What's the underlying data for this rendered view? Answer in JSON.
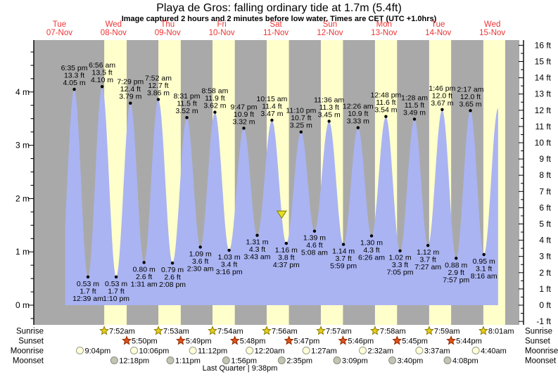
{
  "header": {
    "title": "Playa de Gros: falling  ordinary tide at 1.7m (5.4ft)",
    "subtitle": "Image captured 2 hours and 2 minutes before low water. Times are CET (UTC +1.0hrs)"
  },
  "colors": {
    "background_night": "#a9a9a9",
    "background_day": "#ffffcc",
    "tide_fill": "#aab4f2",
    "day_label": "#ee3333",
    "axis_text": "#000000",
    "sunrise_star_fill": "#e8cc1a",
    "sunrise_star_border": "#8a7d00",
    "sunset_star_fill": "#e0521a",
    "sunset_star_border": "#8c2a00",
    "moonrise_fill": "#ffffd8",
    "moonrise_border": "#9a9a8a",
    "moonset_fill": "#c4c4b4",
    "moonset_border": "#8a8a7e",
    "now_marker_fill": "#e3df25",
    "now_marker_border": "#8a8a10"
  },
  "chart_data": {
    "type": "area",
    "title": "Playa de Gros: falling  ordinary tide at 1.7m (5.4ft)",
    "x_axis_days": [
      {
        "weekday": "Tue",
        "date": "07-Nov"
      },
      {
        "weekday": "Wed",
        "date": "08-Nov"
      },
      {
        "weekday": "Thu",
        "date": "09-Nov"
      },
      {
        "weekday": "Fri",
        "date": "10-Nov"
      },
      {
        "weekday": "Sat",
        "date": "11-Nov"
      },
      {
        "weekday": "Sun",
        "date": "12-Nov"
      },
      {
        "weekday": "Mon",
        "date": "13-Nov"
      },
      {
        "weekday": "Tue",
        "date": "14-Nov"
      },
      {
        "weekday": "Wed",
        "date": "15-Nov"
      }
    ],
    "y_axis_left": {
      "unit": "m",
      "tick_labels": [
        "4 m",
        "3 m",
        "2 m",
        "1 m",
        "0 m"
      ],
      "major_ticks": [
        4,
        3,
        2,
        1,
        0
      ],
      "minor_step": 0.25
    },
    "y_axis_right": {
      "unit": "ft",
      "major_ticks": [
        16,
        15,
        14,
        13,
        12,
        11,
        10,
        9,
        8,
        7,
        6,
        5,
        4,
        3,
        2,
        1,
        0,
        -1
      ],
      "minor_step": 0.5,
      "label_suffix": " ft"
    },
    "daylight_bands_days": [
      [
        1.3278,
        1.7431
      ],
      [
        2.3285,
        2.7424
      ],
      [
        3.3292,
        3.7417
      ],
      [
        4.3306,
        4.741
      ],
      [
        5.3313,
        5.7403
      ],
      [
        6.3319,
        6.7396
      ],
      [
        7.3326,
        7.7389
      ],
      [
        8.334,
        8.738
      ]
    ],
    "curve": {
      "start_day": 0.6076,
      "end_day": 8.6076,
      "fill_to_m": 0,
      "pre_start_low": {
        "d": 0.5104,
        "m": 0.45
      }
    },
    "now_marker": {
      "day": 4.6076,
      "level_m": 1.7
    },
    "extremes": [
      {
        "type": "high",
        "d": 0.7743,
        "m": 4.05,
        "lines": [
          "6:35 pm",
          "13.3 ft",
          "4.05 m"
        ]
      },
      {
        "type": "low",
        "d": 1.0271,
        "m": 0.53,
        "lines": [
          "0.53 m",
          "1.7 ft",
          "12:39 am"
        ]
      },
      {
        "type": "high",
        "d": 1.2889,
        "m": 4.1,
        "lines": [
          "6:56 am",
          "13.5 ft",
          "4.10 m"
        ]
      },
      {
        "type": "low",
        "d": 1.5486,
        "m": 0.53,
        "lines": [
          "0.53 m",
          "1.7 ft",
          "1:10 pm"
        ]
      },
      {
        "type": "high",
        "d": 1.8118,
        "m": 3.79,
        "lines": [
          "7:29 pm",
          "12.4 ft",
          "3.79 m"
        ]
      },
      {
        "type": "low",
        "d": 2.0632,
        "m": 0.8,
        "lines": [
          "0.80 m",
          "2.6 ft",
          "1:31 am"
        ]
      },
      {
        "type": "high",
        "d": 2.3278,
        "m": 3.86,
        "lines": [
          "7:52 am",
          "12.7 ft",
          "3.86 m"
        ]
      },
      {
        "type": "low",
        "d": 2.5889,
        "m": 0.79,
        "lines": [
          "0.79 m",
          "2.6 ft",
          "2:08 pm"
        ]
      },
      {
        "type": "high",
        "d": 2.8549,
        "m": 3.52,
        "lines": [
          "8:31 pm",
          "11.5 ft",
          "3.52 m"
        ]
      },
      {
        "type": "low",
        "d": 3.1042,
        "m": 1.09,
        "lines": [
          "1.09 m",
          "3.6 ft",
          "2:30 am"
        ]
      },
      {
        "type": "high",
        "d": 3.3736,
        "m": 3.62,
        "lines": [
          "8:58 am",
          "11.9 ft",
          "3.62 m"
        ]
      },
      {
        "type": "low",
        "d": 3.6361,
        "m": 1.03,
        "lines": [
          "1.03 m",
          "3.4 ft",
          "3:16 pm"
        ]
      },
      {
        "type": "high",
        "d": 3.9076,
        "m": 3.32,
        "lines": [
          "9:47 pm",
          "10.9 ft",
          "3.32 m"
        ]
      },
      {
        "type": "low",
        "d": 4.1549,
        "m": 1.31,
        "lines": [
          "1.31 m",
          "4.3 ft",
          "3:43 am"
        ]
      },
      {
        "type": "high",
        "d": 4.4271,
        "m": 3.47,
        "lines": [
          "10:15 am",
          "11.4 ft",
          "3.47 m"
        ]
      },
      {
        "type": "low",
        "d": 4.6924,
        "m": 1.16,
        "lines": [
          "1.16 m",
          "3.8 ft",
          "4:37 pm"
        ]
      },
      {
        "type": "high",
        "d": 4.9653,
        "m": 3.25,
        "lines": [
          "11:10 pm",
          "10.7 ft",
          "3.25 m"
        ]
      },
      {
        "type": "low",
        "d": 5.2139,
        "m": 1.39,
        "lines": [
          "1.39 m",
          "4.6 ft",
          "5:08 am"
        ]
      },
      {
        "type": "high",
        "d": 5.4833,
        "m": 3.45,
        "lines": [
          "11:36 am",
          "11.3 ft",
          "3.45 m"
        ]
      },
      {
        "type": "low",
        "d": 5.7493,
        "m": 1.14,
        "lines": [
          "1.14 m",
          "3.7 ft",
          "5:59 pm"
        ]
      },
      {
        "type": "high",
        "d": 6.0181,
        "m": 3.33,
        "lines": [
          "12:26 am",
          "10.9 ft",
          "3.33 m"
        ]
      },
      {
        "type": "low",
        "d": 6.2681,
        "m": 1.3,
        "lines": [
          "1.30 m",
          "4.3 ft",
          "6:26 am"
        ]
      },
      {
        "type": "high",
        "d": 6.5333,
        "m": 3.54,
        "lines": [
          "12:48 pm",
          "11.6 ft",
          "3.54 m"
        ]
      },
      {
        "type": "low",
        "d": 6.7951,
        "m": 1.02,
        "lines": [
          "1.02 m",
          "3.3 ft",
          "7:05 pm"
        ]
      },
      {
        "type": "high",
        "d": 7.0611,
        "m": 3.49,
        "lines": [
          "1:28 am",
          "11.5 ft",
          "3.49 m"
        ]
      },
      {
        "type": "low",
        "d": 7.3104,
        "m": 1.12,
        "lines": [
          "1.12 m",
          "3.7 ft",
          "7:27 am"
        ]
      },
      {
        "type": "high",
        "d": 7.5736,
        "m": 3.67,
        "lines": [
          "1:46 pm",
          "12.0 ft",
          "3.67 m"
        ]
      },
      {
        "type": "low",
        "d": 7.8313,
        "m": 0.88,
        "lines": [
          "0.88 m",
          "2.9 ft",
          "7:57 pm"
        ]
      },
      {
        "type": "high",
        "d": 8.0951,
        "m": 3.65,
        "lines": [
          "2:17 am",
          "12.0 ft",
          "3.65 m"
        ]
      },
      {
        "type": "low",
        "d": 8.3444,
        "m": 0.95,
        "lines": [
          "0.95 m",
          "3.1 ft",
          "8:16 am"
        ]
      },
      {
        "type": "high",
        "d": 8.6076,
        "m": 3.7,
        "lines": []
      }
    ]
  },
  "astro": {
    "rows": [
      {
        "label": "Sunrise",
        "icon": "sun-star",
        "events": [
          {
            "d": 1.3278,
            "t": "7:52am"
          },
          {
            "d": 2.3285,
            "t": "7:53am"
          },
          {
            "d": 3.3292,
            "t": "7:54am"
          },
          {
            "d": 4.3306,
            "t": "7:56am"
          },
          {
            "d": 5.3313,
            "t": "7:57am"
          },
          {
            "d": 6.3319,
            "t": "7:58am"
          },
          {
            "d": 7.3326,
            "t": "7:59am"
          },
          {
            "d": 8.334,
            "t": "8:01am"
          }
        ]
      },
      {
        "label": "Sunset",
        "icon": "sunset-star",
        "events": [
          {
            "d": 1.7431,
            "t": "5:50pm"
          },
          {
            "d": 2.7424,
            "t": "5:49pm"
          },
          {
            "d": 3.7417,
            "t": "5:48pm"
          },
          {
            "d": 4.741,
            "t": "5:47pm"
          },
          {
            "d": 5.7403,
            "t": "5:46pm"
          },
          {
            "d": 6.7396,
            "t": "5:45pm"
          },
          {
            "d": 7.7389,
            "t": "5:44pm"
          }
        ]
      },
      {
        "label": "Moonrise",
        "icon": "moon-circle-light",
        "events": [
          {
            "d": 0.8778,
            "t": "9:04pm"
          },
          {
            "d": 1.8792,
            "t": "10:06pm"
          },
          {
            "d": 2.9667,
            "t": "11:12pm"
          },
          {
            "d": 4.0139,
            "t": "12:20am"
          },
          {
            "d": 5.0604,
            "t": "1:27am"
          },
          {
            "d": 6.1056,
            "t": "2:32am"
          },
          {
            "d": 7.1507,
            "t": "3:37am"
          },
          {
            "d": 8.1944,
            "t": "4:40am"
          }
        ]
      },
      {
        "label": "Moonset",
        "icon": "moon-circle-dark",
        "events": [
          {
            "d": 1.5125,
            "t": "12:18pm"
          },
          {
            "d": 2.5493,
            "t": "1:11pm"
          },
          {
            "d": 3.5806,
            "t": "1:56pm"
          },
          {
            "d": 4.6076,
            "t": "2:35pm"
          },
          {
            "d": 5.6313,
            "t": "3:09pm"
          },
          {
            "d": 6.6528,
            "t": "3:40pm"
          },
          {
            "d": 7.6722,
            "t": "4:08pm"
          }
        ]
      }
    ],
    "moon_phase": "Last Quarter | 9:38pm"
  }
}
